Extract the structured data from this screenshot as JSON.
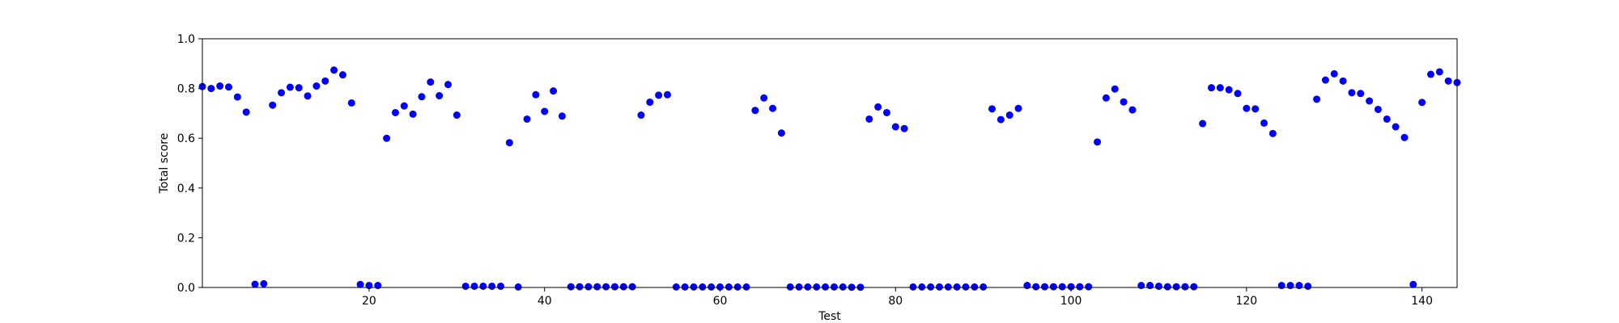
{
  "chart_data": {
    "type": "scatter",
    "title": "",
    "xlabel": "Test",
    "ylabel": "Total score",
    "xlim": [
      1,
      144
    ],
    "ylim": [
      0.0,
      1.0
    ],
    "xticks": [
      20,
      40,
      60,
      80,
      100,
      120,
      140
    ],
    "yticks": [
      0.0,
      0.2,
      0.4,
      0.6,
      0.8,
      1.0
    ],
    "ytick_labels": [
      "0.0",
      "0.2",
      "0.4",
      "0.6",
      "0.8",
      "1.0"
    ],
    "grid": false,
    "marker_color": "#0000ff",
    "x": [
      1,
      2,
      3,
      4,
      5,
      6,
      7,
      8,
      9,
      10,
      11,
      12,
      13,
      14,
      15,
      16,
      17,
      18,
      19,
      20,
      21,
      22,
      23,
      24,
      25,
      26,
      27,
      28,
      29,
      30,
      31,
      32,
      33,
      34,
      35,
      36,
      37,
      38,
      39,
      40,
      41,
      42,
      43,
      44,
      45,
      46,
      47,
      48,
      49,
      50,
      51,
      52,
      53,
      54,
      55,
      56,
      57,
      58,
      59,
      60,
      61,
      62,
      63,
      64,
      65,
      66,
      67,
      68,
      69,
      70,
      71,
      72,
      73,
      74,
      75,
      76,
      77,
      78,
      79,
      80,
      81,
      82,
      83,
      84,
      85,
      86,
      87,
      88,
      89,
      90,
      91,
      92,
      93,
      94,
      95,
      96,
      97,
      98,
      99,
      100,
      101,
      102,
      103,
      104,
      105,
      106,
      107,
      108,
      109,
      110,
      111,
      112,
      113,
      114,
      115,
      116,
      117,
      118,
      119,
      120,
      121,
      122,
      123,
      124,
      125,
      126,
      127,
      128,
      129,
      130,
      131,
      132,
      133,
      134,
      135,
      136,
      137,
      138,
      139,
      140,
      141,
      142,
      143,
      144
    ],
    "y": [
      0.808,
      0.8,
      0.81,
      0.806,
      0.766,
      0.705,
      0.013,
      0.015,
      0.733,
      0.783,
      0.805,
      0.803,
      0.77,
      0.81,
      0.83,
      0.874,
      0.855,
      0.742,
      0.012,
      0.008,
      0.008,
      0.6,
      0.703,
      0.73,
      0.697,
      0.767,
      0.826,
      0.771,
      0.816,
      0.693,
      0.005,
      0.005,
      0.005,
      0.005,
      0.005,
      0.582,
      0.002,
      0.677,
      0.775,
      0.708,
      0.79,
      0.689,
      0.003,
      0.003,
      0.003,
      0.003,
      0.003,
      0.003,
      0.003,
      0.003,
      0.693,
      0.745,
      0.773,
      0.775,
      0.002,
      0.002,
      0.002,
      0.002,
      0.002,
      0.002,
      0.002,
      0.002,
      0.002,
      0.712,
      0.762,
      0.72,
      0.621,
      0.002,
      0.002,
      0.002,
      0.002,
      0.002,
      0.002,
      0.002,
      0.001,
      0.001,
      0.677,
      0.726,
      0.703,
      0.646,
      0.639,
      0.002,
      0.002,
      0.002,
      0.002,
      0.002,
      0.002,
      0.002,
      0.002,
      0.002,
      0.718,
      0.675,
      0.693,
      0.72,
      0.008,
      0.003,
      0.003,
      0.003,
      0.003,
      0.003,
      0.003,
      0.003,
      0.585,
      0.762,
      0.798,
      0.746,
      0.714,
      0.008,
      0.008,
      0.005,
      0.003,
      0.003,
      0.003,
      0.003,
      0.659,
      0.803,
      0.803,
      0.795,
      0.78,
      0.72,
      0.718,
      0.661,
      0.619,
      0.008,
      0.008,
      0.008,
      0.005,
      0.757,
      0.834,
      0.859,
      0.83,
      0.783,
      0.78,
      0.75,
      0.716,
      0.677,
      0.646,
      0.603,
      0.012,
      0.744,
      0.857,
      0.867,
      0.83,
      0.824
    ]
  }
}
